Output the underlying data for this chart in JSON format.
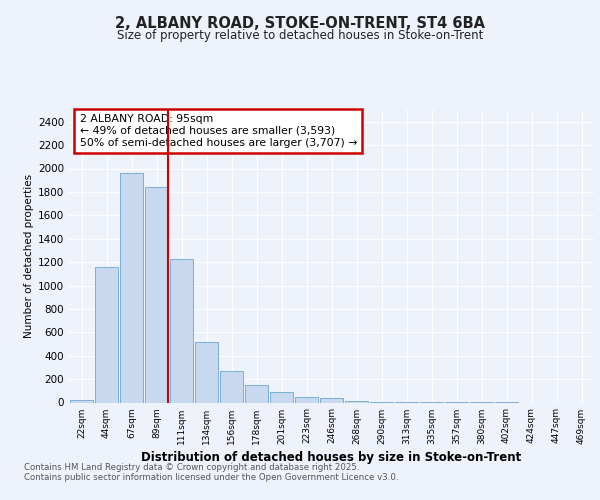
{
  "title": "2, ALBANY ROAD, STOKE-ON-TRENT, ST4 6BA",
  "subtitle": "Size of property relative to detached houses in Stoke-on-Trent",
  "xlabel": "Distribution of detached houses by size in Stoke-on-Trent",
  "ylabel": "Number of detached properties",
  "categories": [
    "22sqm",
    "44sqm",
    "67sqm",
    "89sqm",
    "111sqm",
    "134sqm",
    "156sqm",
    "178sqm",
    "201sqm",
    "223sqm",
    "246sqm",
    "268sqm",
    "290sqm",
    "313sqm",
    "335sqm",
    "357sqm",
    "380sqm",
    "402sqm",
    "424sqm",
    "447sqm",
    "469sqm"
  ],
  "values": [
    25,
    1155,
    1960,
    1845,
    1230,
    520,
    270,
    150,
    90,
    50,
    35,
    15,
    7,
    3,
    2,
    1,
    1,
    1,
    0,
    0,
    0
  ],
  "bar_color": "#c8d9ef",
  "bar_edge_color": "#7aafd4",
  "vline_color": "#cc0000",
  "vline_bar_index": 3,
  "annotation_text": "2 ALBANY ROAD: 95sqm\n← 49% of detached houses are smaller (3,593)\n50% of semi-detached houses are larger (3,707) →",
  "annotation_box_color": "#ffffff",
  "annotation_box_edge": "#cc0000",
  "background_color": "#eef2fa",
  "grid_color": "#ffffff",
  "footer": "Contains HM Land Registry data © Crown copyright and database right 2025.\nContains public sector information licensed under the Open Government Licence v3.0.",
  "ylim": [
    0,
    2500
  ],
  "yticks": [
    0,
    200,
    400,
    600,
    800,
    1000,
    1200,
    1400,
    1600,
    1800,
    2000,
    2200,
    2400
  ]
}
